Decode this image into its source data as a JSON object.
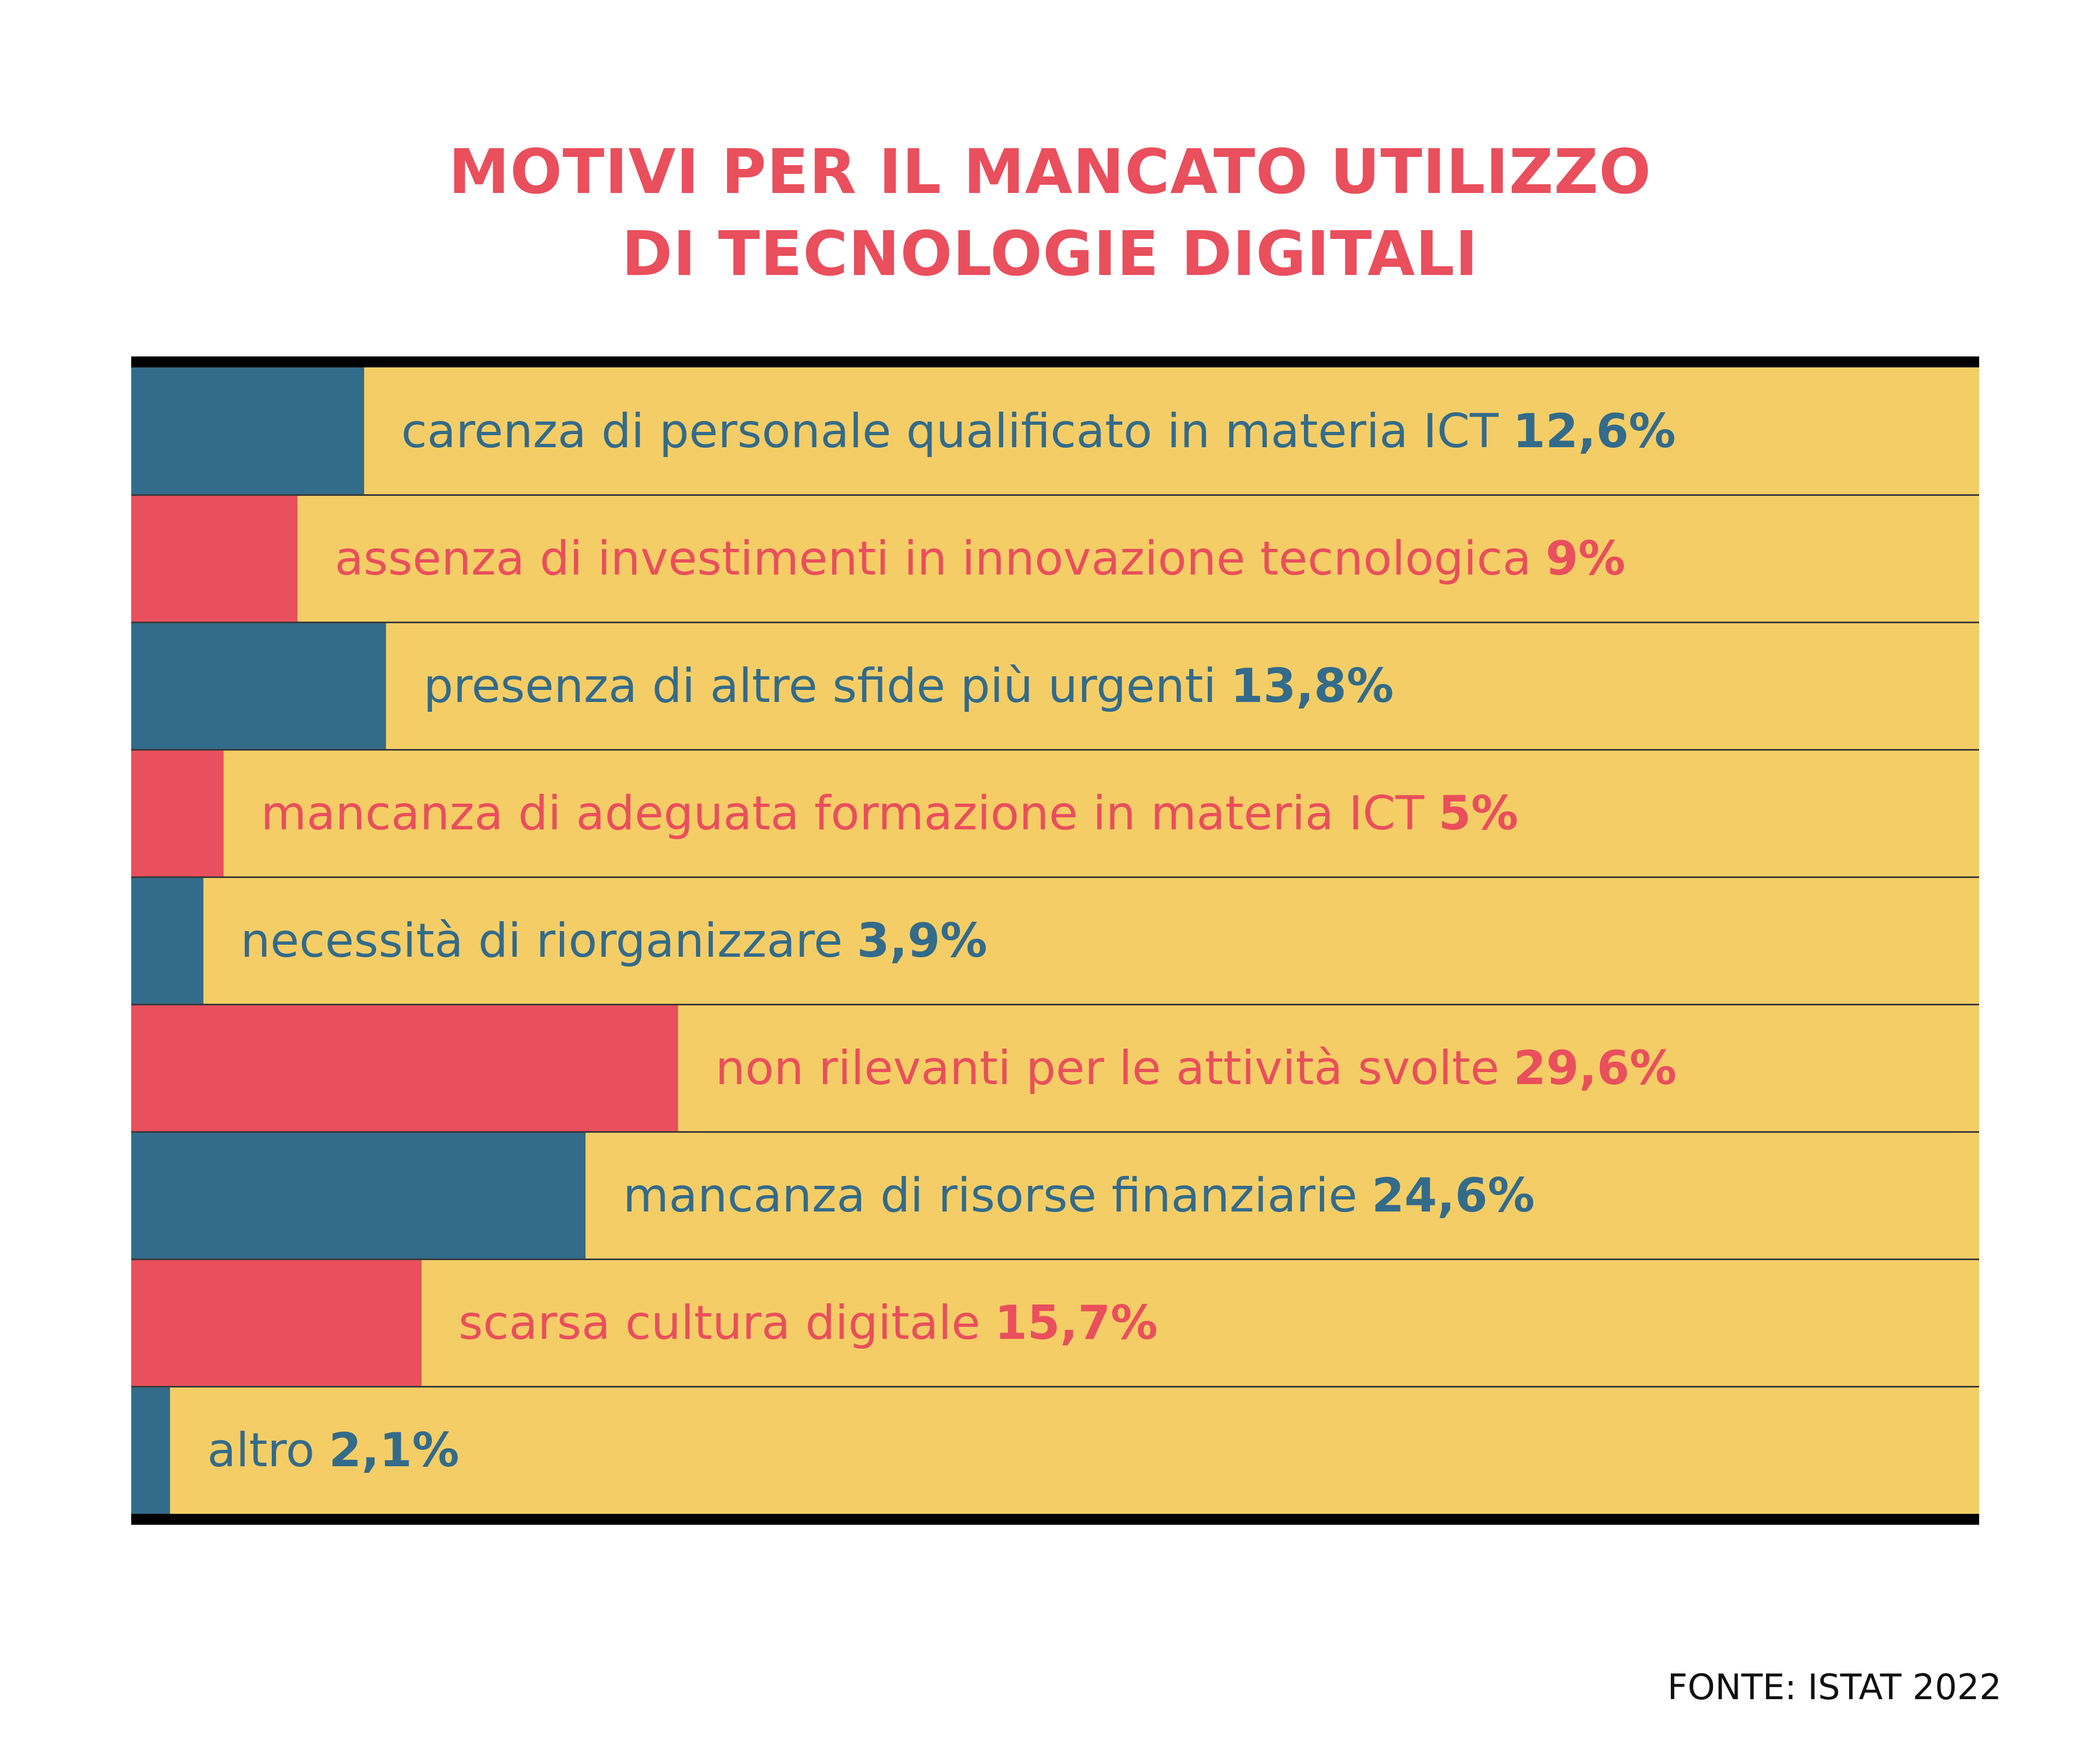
{
  "title": {
    "line1": "MOTIVI PER IL MANCATO UTILIZZO",
    "line2": "DI TECNOLOGIE DIGITALI"
  },
  "colors": {
    "blue": "#336b8a",
    "red": "#e94f5c",
    "background_bar": "#f5cd66",
    "title": "#e94f5c"
  },
  "chart_data": {
    "type": "bar",
    "orientation": "horizontal",
    "title": "MOTIVI PER IL MANCATO UTILIZZO DI TECNOLOGIE DIGITALI",
    "xlabel": "",
    "ylabel": "",
    "xlim": [
      0,
      100
    ],
    "categories": [
      "carenza di personale qualificato in materia ICT",
      "assenza di investimenti in innovazione tecnologica",
      "presenza di altre sfide più urgenti",
      "mancanza di adeguata formazione in materia ICT",
      "necessità di riorganizzare",
      "non rilevanti per le attività svolte",
      "mancanza di risorse finanziarie",
      "scarsa cultura digitale",
      "altro"
    ],
    "values": [
      12.6,
      9,
      13.8,
      5,
      3.9,
      29.6,
      24.6,
      15.7,
      2.1
    ],
    "value_labels": [
      "12,6%",
      "9%",
      "13,8%",
      "5%",
      "3,9%",
      "29,6%",
      "24,6%",
      "15,7%",
      "2,1%"
    ],
    "bar_colors": [
      "#336b8a",
      "#e94f5c",
      "#336b8a",
      "#e94f5c",
      "#336b8a",
      "#e94f5c",
      "#336b8a",
      "#e94f5c",
      "#336b8a"
    ],
    "grid": false,
    "legend": "none"
  },
  "source": "FONTE: ISTAT 2022"
}
